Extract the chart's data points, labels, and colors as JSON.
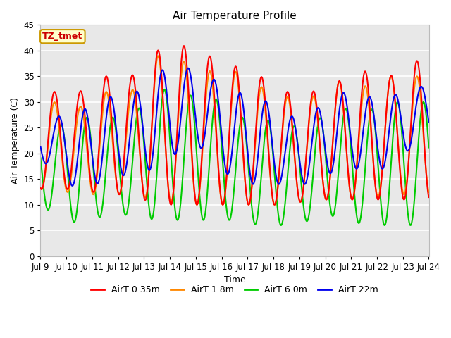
{
  "title": "Air Temperature Profile",
  "xlabel": "Time",
  "ylabel": "Air Temperature (C)",
  "xlim": [
    9,
    24
  ],
  "ylim": [
    0,
    45
  ],
  "yticks": [
    0,
    5,
    10,
    15,
    20,
    25,
    30,
    35,
    40,
    45
  ],
  "xtick_labels": [
    "Jul 9",
    "Jul 10",
    "Jul 11",
    "Jul 12",
    "Jul 13",
    "Jul 14",
    "Jul 15",
    "Jul 16",
    "Jul 17",
    "Jul 18",
    "Jul 19",
    "Jul 20",
    "Jul 21",
    "Jul 22",
    "Jul 23",
    "Jul 24"
  ],
  "xtick_positions": [
    9,
    10,
    11,
    12,
    13,
    14,
    15,
    16,
    17,
    18,
    19,
    20,
    21,
    22,
    23,
    24
  ],
  "annotation_text": "TZ_tmet",
  "annotation_bg": "#ffffcc",
  "annotation_border": "#cc9900",
  "annotation_text_color": "#cc0000",
  "red_color": "#ff0000",
  "orange_color": "#ff8800",
  "green_color": "#00cc00",
  "blue_color": "#0000ee",
  "bg_color": "#e8e8e8",
  "grid_color": "#ffffff",
  "legend_labels": [
    "AirT 0.35m",
    "AirT 1.8m",
    "AirT 6.0m",
    "AirT 22m"
  ],
  "red_peaks": [
    32,
    32,
    35,
    35,
    40,
    41,
    39,
    37,
    35,
    32,
    32,
    34,
    36,
    35,
    38
  ],
  "red_troughs": [
    13,
    13,
    12,
    12,
    10,
    10,
    10,
    10,
    10,
    10,
    11,
    11,
    11,
    11,
    11
  ],
  "ora_peaks": [
    30,
    29,
    32,
    32,
    39,
    38,
    36,
    36,
    33,
    31,
    31,
    34,
    33,
    35,
    35
  ],
  "ora_troughs": [
    13,
    12,
    12,
    12,
    11,
    10,
    10,
    10,
    10,
    10,
    11,
    11,
    11,
    12,
    12
  ],
  "grn_peaks": [
    25,
    27,
    27,
    27,
    33,
    31,
    32,
    27,
    27,
    25,
    26,
    29,
    28,
    30,
    30
  ],
  "grn_troughs": [
    9,
    6,
    8,
    8,
    7,
    7,
    7,
    7,
    6,
    6,
    7,
    8,
    6,
    6,
    6
  ],
  "blu_peaks": [
    27,
    28,
    31,
    31,
    36,
    37,
    35,
    32,
    31,
    27,
    28,
    32,
    31,
    31,
    33
  ],
  "blu_troughs": [
    18,
    12,
    15,
    16,
    17,
    21,
    21,
    14,
    14,
    14,
    14,
    17,
    17,
    17,
    22
  ],
  "red_phase": 0.292,
  "ora_phase": 0.292,
  "grn_phase": 0.542,
  "blu_phase": 0.458,
  "lw": 1.5
}
